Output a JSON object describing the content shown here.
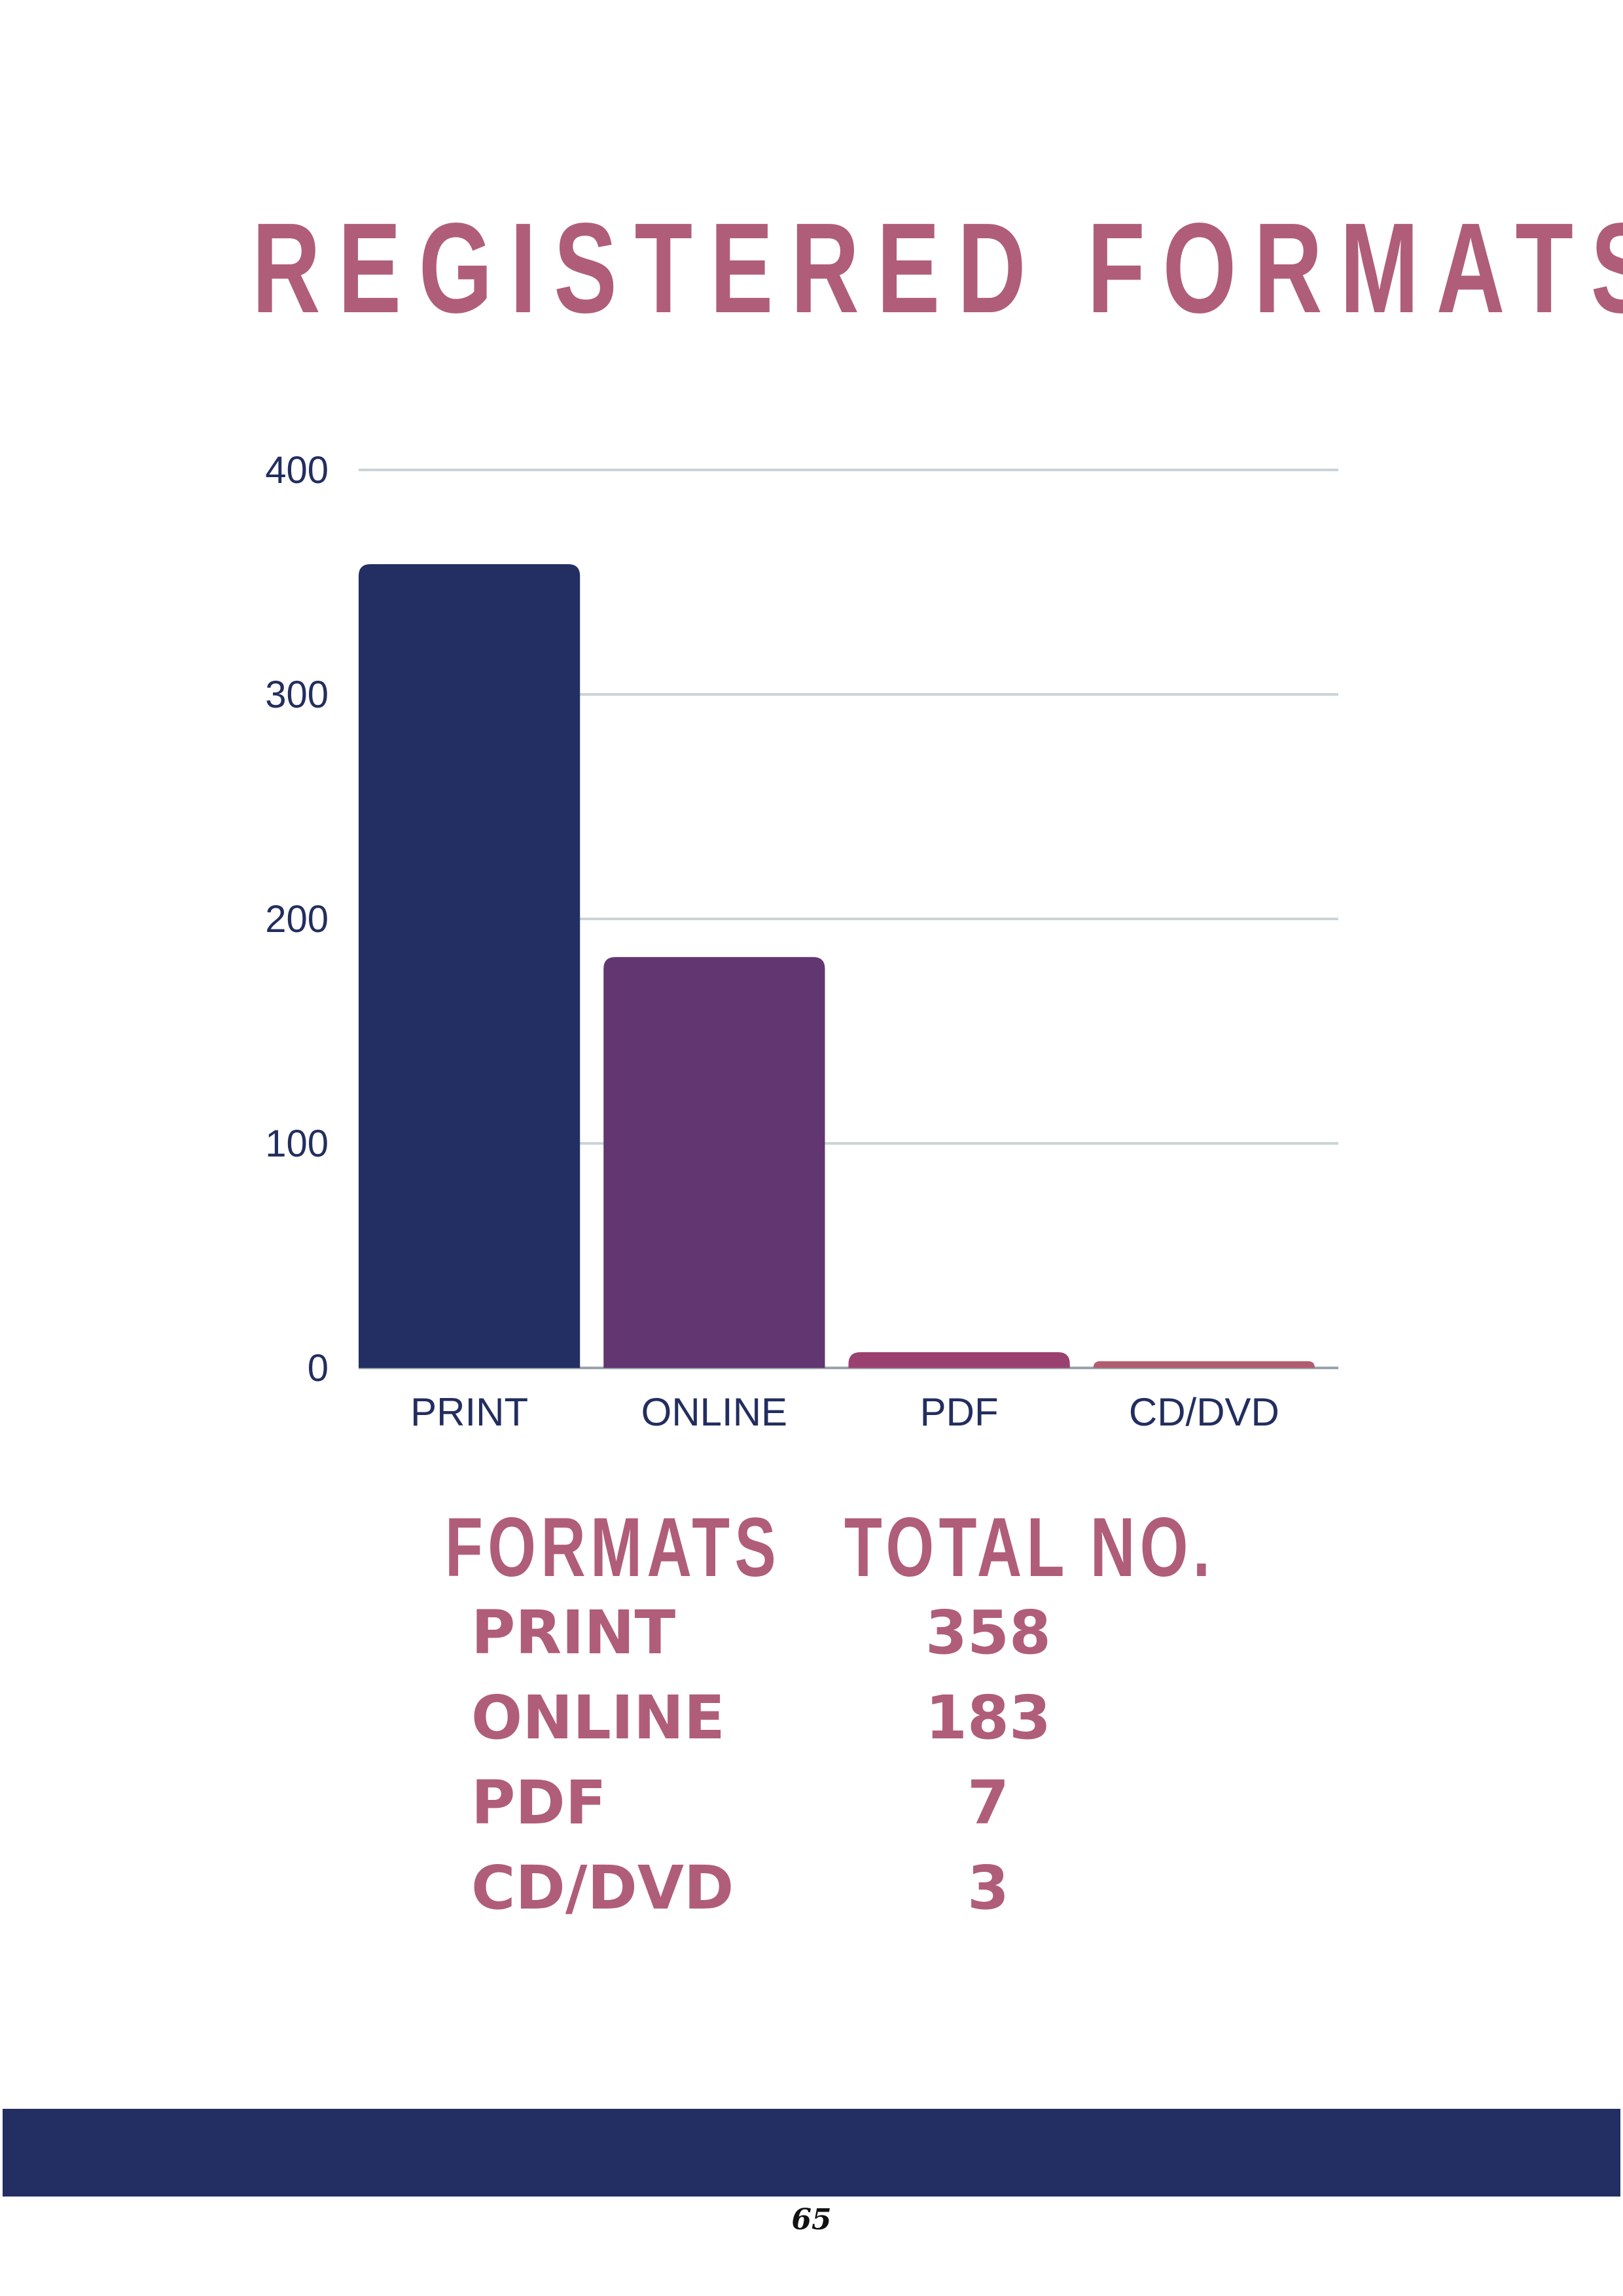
{
  "title": "REGISTERED FORMATS",
  "chart_data": {
    "type": "bar",
    "categories": [
      "PRINT",
      "ONLINE",
      "PDF",
      "CD/DVD"
    ],
    "values": [
      358,
      183,
      7,
      3
    ],
    "colors": [
      "#232e63",
      "#623670",
      "#9b416f",
      "#b05d6f"
    ],
    "yticks": [
      0,
      100,
      200,
      300,
      400
    ],
    "ylim": [
      0,
      400
    ],
    "grid": true,
    "title": "REGISTERED FORMATS",
    "xlabel": "",
    "ylabel": ""
  },
  "table": {
    "header_format": "FORMATS",
    "header_total": "TOTAL NO.",
    "rows": [
      {
        "format": "PRINT",
        "total": "358"
      },
      {
        "format": "ONLINE",
        "total": "183"
      },
      {
        "format": "PDF",
        "total": "7"
      },
      {
        "format": "CD/DVD",
        "total": "3"
      }
    ]
  },
  "footer": {
    "page_number": "65",
    "bar_color": "#232e63"
  }
}
